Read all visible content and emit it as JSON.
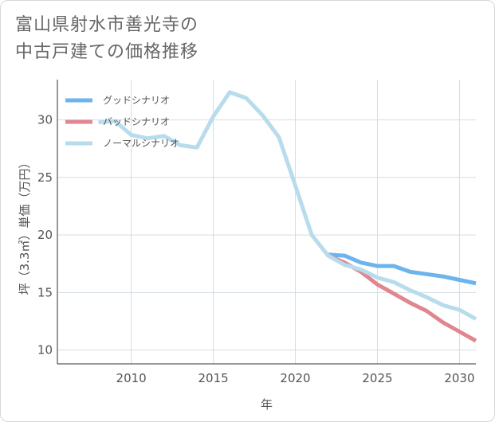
{
  "title_lines": [
    "富山県射水市善光寺の",
    "中古戸建ての価格推移"
  ],
  "chart_data": {
    "type": "line",
    "title": "富山県射水市善光寺の中古戸建ての価格推移",
    "xlabel": "年",
    "ylabel": "坪（3.3㎡）単価（万円）",
    "xlim": [
      2005.5,
      2031
    ],
    "ylim": [
      8.8,
      33.5
    ],
    "xticks": [
      2010,
      2015,
      2020,
      2025,
      2030
    ],
    "yticks": [
      10,
      15,
      20,
      25,
      30
    ],
    "grid": true,
    "legend_position": "top-left",
    "series": [
      {
        "name": "グッドシナリオ",
        "color": "#6cb4ee",
        "x": [
          2022,
          2023,
          2024,
          2025,
          2026,
          2027,
          2028,
          2029,
          2030,
          2031
        ],
        "y": [
          18.3,
          18.2,
          17.6,
          17.3,
          17.3,
          16.8,
          16.6,
          16.4,
          16.1,
          15.8
        ]
      },
      {
        "name": "バッドシナリオ",
        "color": "#e0868f",
        "x": [
          2022,
          2023,
          2024,
          2025,
          2026,
          2027,
          2028,
          2029,
          2030,
          2031
        ],
        "y": [
          18.2,
          17.6,
          16.8,
          15.7,
          14.9,
          14.1,
          13.4,
          12.4,
          11.6,
          10.8
        ]
      },
      {
        "name": "ノーマルシナリオ",
        "color": "#b8dcec",
        "x": [
          2008,
          2009,
          2010,
          2011,
          2012,
          2013,
          2014,
          2015,
          2016,
          2017,
          2018,
          2019,
          2020,
          2021,
          2022,
          2023,
          2024,
          2025,
          2026,
          2027,
          2028,
          2029,
          2030,
          2031
        ],
        "y": [
          29.8,
          29.9,
          28.7,
          28.4,
          28.6,
          27.8,
          27.6,
          30.3,
          32.4,
          31.9,
          30.4,
          28.5,
          24.3,
          20.0,
          18.2,
          17.4,
          17.0,
          16.3,
          15.9,
          15.2,
          14.6,
          13.9,
          13.5,
          12.7
        ]
      }
    ]
  }
}
